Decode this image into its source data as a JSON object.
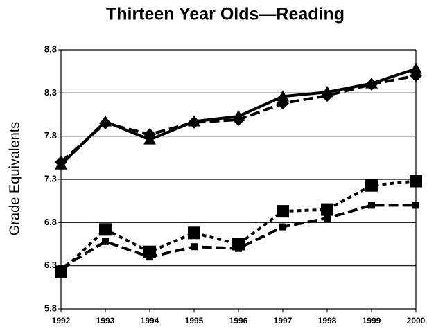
{
  "chart_data": {
    "type": "line",
    "title": "Thirteen Year Olds—Reading",
    "y_label": "Grade Equivalents",
    "categories": [
      "1992",
      "1993",
      "1994",
      "1995",
      "1996",
      "1997",
      "1998",
      "1999",
      "2000"
    ],
    "ylim": [
      5.8,
      8.8
    ],
    "yticks": [
      5.8,
      6.3,
      6.8,
      7.3,
      7.8,
      8.3,
      8.8
    ],
    "grid": true,
    "series": [
      {
        "color": "#000000",
        "marker": "diamond",
        "dash": "14 6",
        "values": [
          7.5,
          7.95,
          7.82,
          7.96,
          7.99,
          8.18,
          8.27,
          8.4,
          8.5
        ]
      },
      {
        "color": "#000000",
        "marker": "triangle",
        "dash": "none",
        "values": [
          7.47,
          7.97,
          7.76,
          7.97,
          8.03,
          8.26,
          8.31,
          8.41,
          8.58
        ]
      },
      {
        "color": "#000000",
        "marker": "small-square",
        "dash": "14 6",
        "values": [
          6.27,
          6.58,
          6.4,
          6.52,
          6.5,
          6.75,
          6.85,
          7.0,
          7.0
        ]
      },
      {
        "color": "#000000",
        "marker": "square",
        "dash": "6 5",
        "values": [
          6.23,
          6.72,
          6.46,
          6.68,
          6.55,
          6.93,
          6.95,
          7.23,
          7.28
        ]
      }
    ]
  }
}
